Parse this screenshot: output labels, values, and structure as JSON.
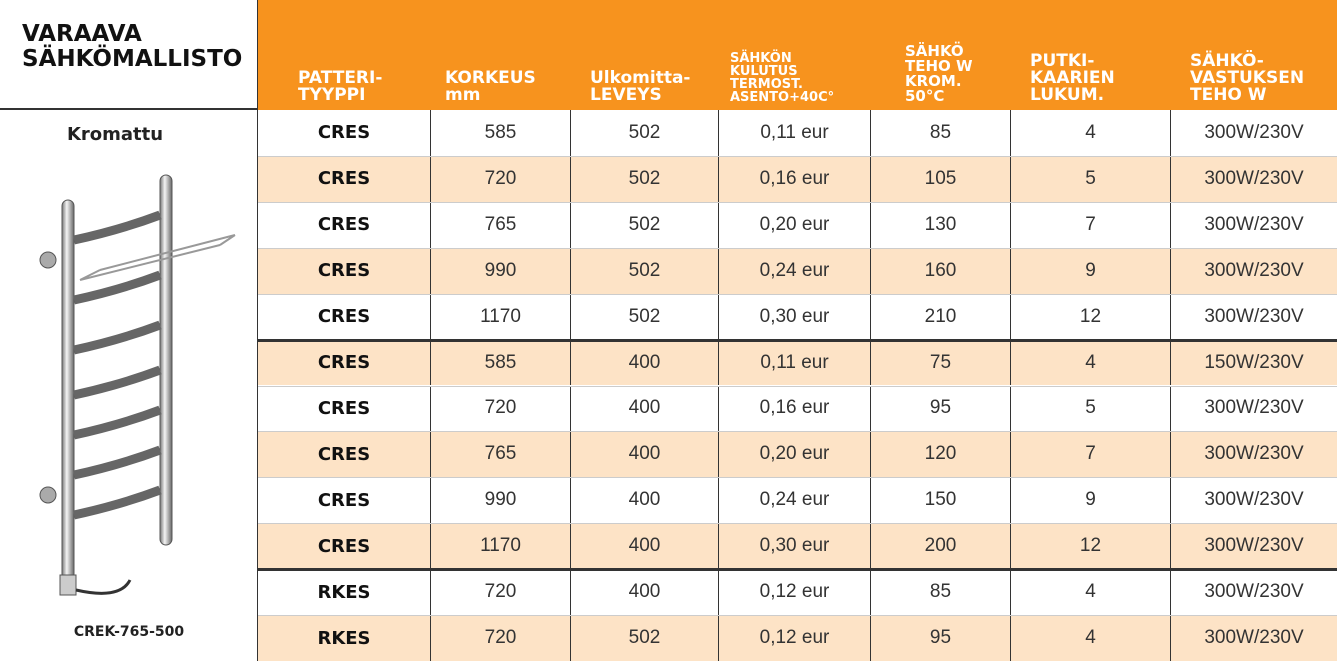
{
  "header": {
    "title": [
      "VARAAVA",
      "SÄHKÖMALLISTO"
    ],
    "columns": [
      [
        "PATTERI-",
        "TYYPPI"
      ],
      [
        "KORKEUS",
        "mm"
      ],
      [
        "Ulkomitta-",
        "LEVEYS"
      ],
      [
        "SÄHKÖN",
        "KULUTUS",
        "TERMOST.",
        "ASENTO+40C°"
      ],
      [
        "SÄHKÖ",
        "TEHO W",
        "KROM.",
        "50°C"
      ],
      [
        "PUTKI-",
        "KAARIEN",
        "LUKUM."
      ],
      [
        "SÄHKÖ-",
        "VASTUKSEN",
        "TEHO W"
      ]
    ]
  },
  "product": {
    "finish": "Kromattu",
    "model": "CREK-765-500"
  },
  "table": {
    "rows": [
      [
        "CRES",
        "585",
        "502",
        "0,11 eur",
        "85",
        "4",
        "300W/230V"
      ],
      [
        "CRES",
        "720",
        "502",
        "0,16 eur",
        "105",
        "5",
        "300W/230V"
      ],
      [
        "CRES",
        "765",
        "502",
        "0,20 eur",
        "130",
        "7",
        "300W/230V"
      ],
      [
        "CRES",
        "990",
        "502",
        "0,24 eur",
        "160",
        "9",
        "300W/230V"
      ],
      [
        "CRES",
        "1170",
        "502",
        "0,30 eur",
        "210",
        "12",
        "300W/230V"
      ],
      [
        "CRES",
        "585",
        "400",
        "0,11 eur",
        "75",
        "4",
        "150W/230V"
      ],
      [
        "CRES",
        "720",
        "400",
        "0,16 eur",
        "95",
        "5",
        "300W/230V"
      ],
      [
        "CRES",
        "765",
        "400",
        "0,20 eur",
        "120",
        "7",
        "300W/230V"
      ],
      [
        "CRES",
        "990",
        "400",
        "0,24 eur",
        "150",
        "9",
        "300W/230V"
      ],
      [
        "CRES",
        "1170",
        "400",
        "0,30 eur",
        "200",
        "12",
        "300W/230V"
      ],
      [
        "RKES",
        "720",
        "400",
        "0,12 eur",
        "85",
        "4",
        "300W/230V"
      ],
      [
        "RKES",
        "720",
        "502",
        "0,12 eur",
        "95",
        "4",
        "300W/230V"
      ]
    ]
  }
}
